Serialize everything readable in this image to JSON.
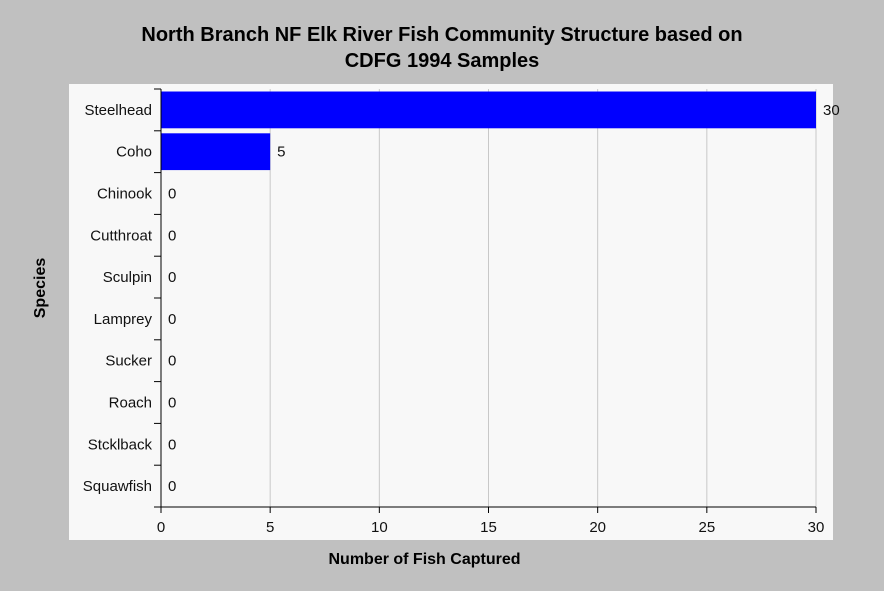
{
  "chart_data": {
    "type": "bar",
    "orientation": "horizontal",
    "title": "North Branch NF Elk River Fish Community Structure based on CDFG 1994 Samples",
    "title_lines": [
      "North Branch NF Elk River Fish Community Structure based on",
      "CDFG 1994 Samples"
    ],
    "xlabel": "Number of Fish Captured",
    "ylabel": "Species",
    "categories": [
      "Steelhead",
      "Coho",
      "Chinook",
      "Cutthroat",
      "Sculpin",
      "Lamprey",
      "Sucker",
      "Roach",
      "Stcklback",
      "Squawfish"
    ],
    "values": [
      30,
      5,
      0,
      0,
      0,
      0,
      0,
      0,
      0,
      0
    ],
    "value_labels": [
      "30",
      "5",
      "0",
      "0",
      "0",
      "0",
      "0",
      "0",
      "0",
      "0"
    ],
    "xlim": [
      0,
      30
    ],
    "xticks": [
      0,
      5,
      10,
      15,
      20,
      25,
      30
    ],
    "xtick_labels": [
      "0",
      "5",
      "10",
      "15",
      "20",
      "25",
      "30"
    ],
    "grid": "vertical",
    "legend": "none",
    "colors": {
      "bar": "#0000ff",
      "plot_background": "#f8f8f8",
      "page_background": "#c0c0c0",
      "grid": "#c8c8c8"
    }
  }
}
